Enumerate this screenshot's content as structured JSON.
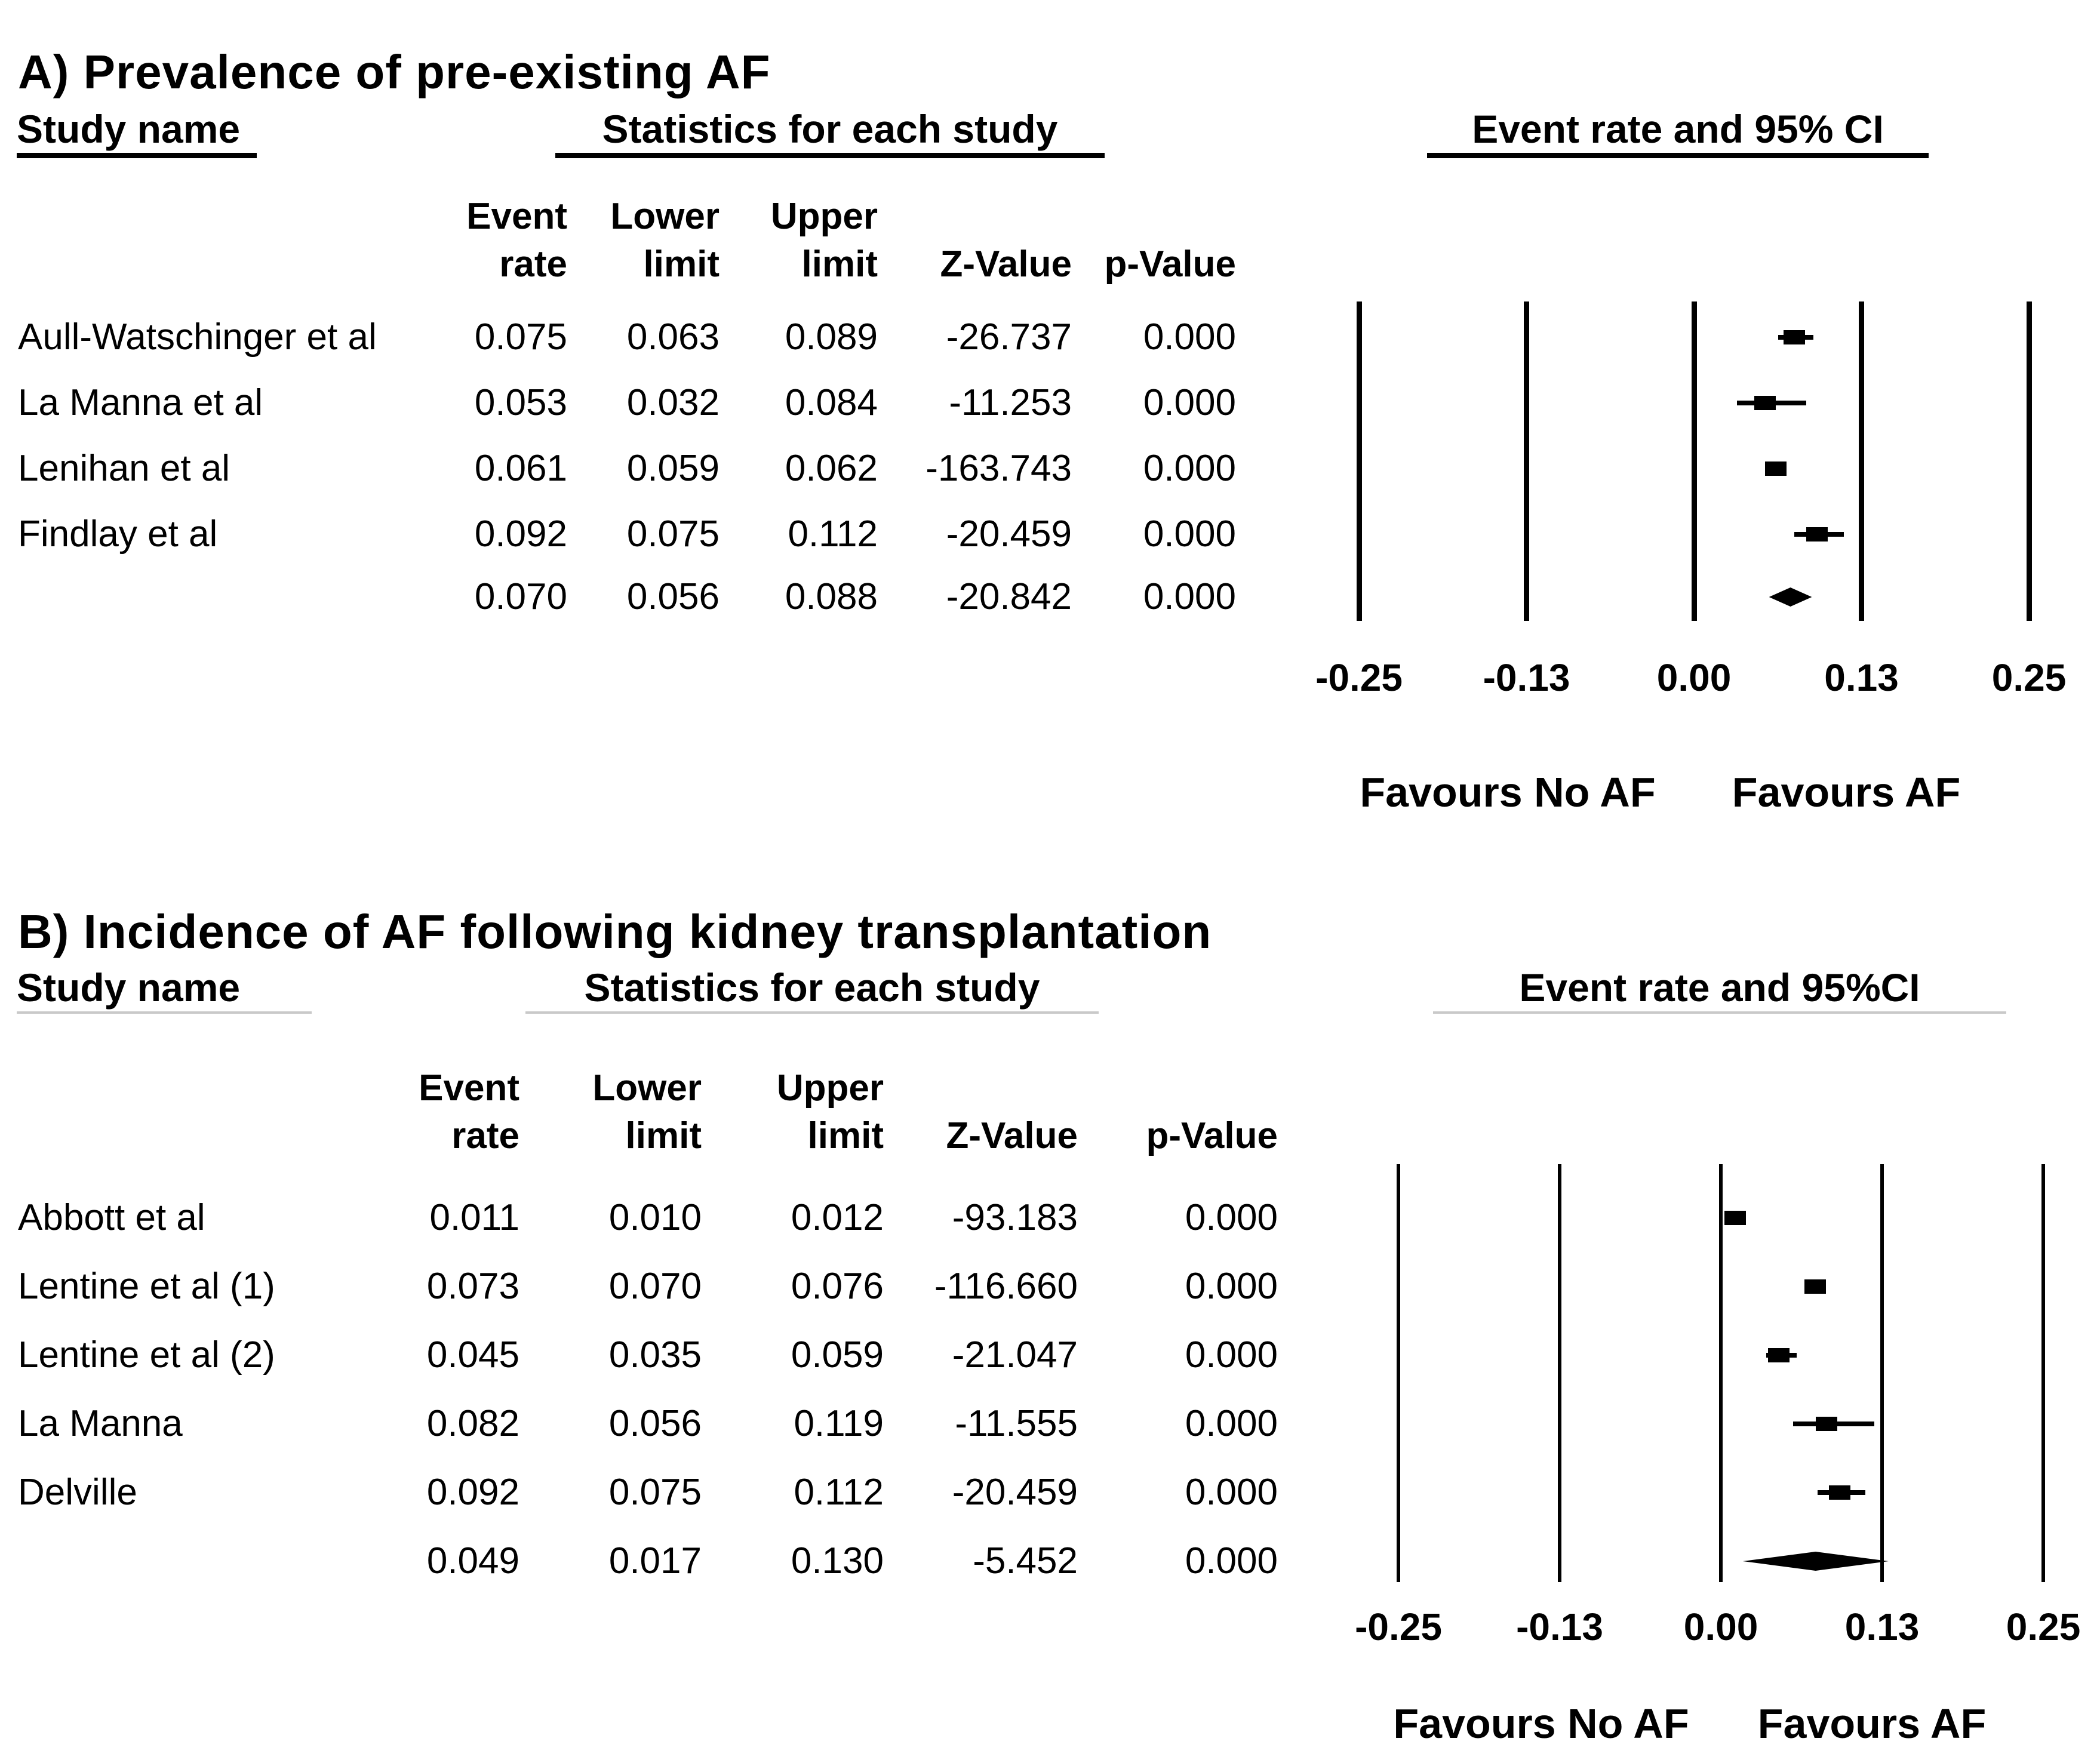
{
  "figure": {
    "panels": [
      {
        "label": "A",
        "title": "A) Prevalence of pre-existing AF",
        "group_headers": {
          "study": "Study name",
          "stats": "Statistics for each study",
          "plot": "Event rate and 95% CI"
        },
        "column_headers": {
          "event_top": "Event",
          "event_bottom": "rate",
          "lower_top": "Lower",
          "lower_bottom": "limit",
          "upper_top": "Upper",
          "upper_bottom": "limit",
          "z": "Z-Value",
          "p": "p-Value"
        },
        "rows": [
          {
            "study": "Aull-Watschinger et al",
            "event_rate": "0.075",
            "lower_limit": "0.063",
            "upper_limit": "0.089",
            "z_value": "-26.737",
            "p_value": "0.000"
          },
          {
            "study": "La Manna et al",
            "event_rate": "0.053",
            "lower_limit": "0.032",
            "upper_limit": "0.084",
            "z_value": "-11.253",
            "p_value": "0.000"
          },
          {
            "study": "Lenihan et al",
            "event_rate": "0.061",
            "lower_limit": "0.059",
            "upper_limit": "0.062",
            "z_value": "-163.743",
            "p_value": "0.000"
          },
          {
            "study": "Findlay et al",
            "event_rate": "0.092",
            "lower_limit": "0.075",
            "upper_limit": "0.112",
            "z_value": "-20.459",
            "p_value": "0.000"
          }
        ],
        "summary_row": {
          "event_rate": "0.070",
          "lower_limit": "0.056",
          "upper_limit": "0.088",
          "z_value": "-20.842",
          "p_value": "0.000"
        },
        "axis_ticks": [
          "-0.25",
          "-0.13",
          "0.00",
          "0.13",
          "0.25"
        ],
        "favours_left": "Favours No AF",
        "favours_right": "Favours AF"
      },
      {
        "label": "B",
        "title": "B) Incidence of AF following kidney transplantation",
        "group_headers": {
          "study": "Study name",
          "stats": "Statistics for each study",
          "plot": "Event rate and 95%CI"
        },
        "column_headers": {
          "event_top": "Event",
          "event_bottom": "rate",
          "lower_top": "Lower",
          "lower_bottom": "limit",
          "upper_top": "Upper",
          "upper_bottom": "limit",
          "z": "Z-Value",
          "p": "p-Value"
        },
        "rows": [
          {
            "study": "Abbott et al",
            "event_rate": "0.011",
            "lower_limit": "0.010",
            "upper_limit": "0.012",
            "z_value": "-93.183",
            "p_value": "0.000"
          },
          {
            "study": "Lentine et al (1)",
            "event_rate": "0.073",
            "lower_limit": "0.070",
            "upper_limit": "0.076",
            "z_value": "-116.660",
            "p_value": "0.000"
          },
          {
            "study": "Lentine et al (2)",
            "event_rate": "0.045",
            "lower_limit": "0.035",
            "upper_limit": "0.059",
            "z_value": "-21.047",
            "p_value": "0.000"
          },
          {
            "study": "La Manna",
            "event_rate": "0.082",
            "lower_limit": "0.056",
            "upper_limit": "0.119",
            "z_value": "-11.555",
            "p_value": "0.000"
          },
          {
            "study": "Delville",
            "event_rate": "0.092",
            "lower_limit": "0.075",
            "upper_limit": "0.112",
            "z_value": "-20.459",
            "p_value": "0.000"
          }
        ],
        "summary_row": {
          "event_rate": "0.049",
          "lower_limit": "0.017",
          "upper_limit": "0.130",
          "z_value": "-5.452",
          "p_value": "0.000"
        },
        "axis_ticks": [
          "-0.25",
          "-0.13",
          "0.00",
          "0.13",
          "0.25"
        ],
        "favours_left": "Favours No AF",
        "favours_right": "Favours AF"
      }
    ]
  },
  "chart_data": [
    {
      "type": "forest",
      "panel": "A",
      "title": "A) Prevalence of pre-existing AF",
      "xlabel": "Event rate and 95% CI",
      "x_axis": {
        "tick_labels": [
          "-0.25",
          "-0.13",
          "0.00",
          "0.13",
          "0.25"
        ],
        "tick_values": [
          -0.25,
          -0.125,
          0,
          0.125,
          0.25
        ],
        "xlim": [
          -0.25,
          0.25
        ]
      },
      "favours": {
        "left": "Favours No AF",
        "right": "Favours AF"
      },
      "studies": [
        {
          "name": "Aull-Watschinger et al",
          "event_rate": 0.075,
          "lower": 0.063,
          "upper": 0.089,
          "z": -26.737,
          "p": 0.0
        },
        {
          "name": "La Manna et al",
          "event_rate": 0.053,
          "lower": 0.032,
          "upper": 0.084,
          "z": -11.253,
          "p": 0.0
        },
        {
          "name": "Lenihan et al",
          "event_rate": 0.061,
          "lower": 0.059,
          "upper": 0.062,
          "z": -163.743,
          "p": 0.0
        },
        {
          "name": "Findlay et al",
          "event_rate": 0.092,
          "lower": 0.075,
          "upper": 0.112,
          "z": -20.459,
          "p": 0.0
        }
      ],
      "summary": {
        "event_rate": 0.07,
        "lower": 0.056,
        "upper": 0.088,
        "z": -20.842,
        "p": 0.0
      }
    },
    {
      "type": "forest",
      "panel": "B",
      "title": "B) Incidence of AF following kidney transplantation",
      "xlabel": "Event rate and 95%CI",
      "x_axis": {
        "tick_labels": [
          "-0.25",
          "-0.13",
          "0.00",
          "0.13",
          "0.25"
        ],
        "tick_values": [
          -0.25,
          -0.125,
          0,
          0.125,
          0.25
        ],
        "xlim": [
          -0.25,
          0.25
        ]
      },
      "favours": {
        "left": "Favours No AF",
        "right": "Favours AF"
      },
      "studies": [
        {
          "name": "Abbott et al",
          "event_rate": 0.011,
          "lower": 0.01,
          "upper": 0.012,
          "z": -93.183,
          "p": 0.0
        },
        {
          "name": "Lentine et al (1)",
          "event_rate": 0.073,
          "lower": 0.07,
          "upper": 0.076,
          "z": -116.66,
          "p": 0.0
        },
        {
          "name": "Lentine et al (2)",
          "event_rate": 0.045,
          "lower": 0.035,
          "upper": 0.059,
          "z": -21.047,
          "p": 0.0
        },
        {
          "name": "La Manna",
          "event_rate": 0.082,
          "lower": 0.056,
          "upper": 0.119,
          "z": -11.555,
          "p": 0.0
        },
        {
          "name": "Delville",
          "event_rate": 0.092,
          "lower": 0.075,
          "upper": 0.112,
          "z": -20.459,
          "p": 0.0
        }
      ],
      "summary": {
        "event_rate": 0.049,
        "lower": 0.017,
        "upper": 0.13,
        "z": -5.452,
        "p": 0.0
      }
    }
  ]
}
